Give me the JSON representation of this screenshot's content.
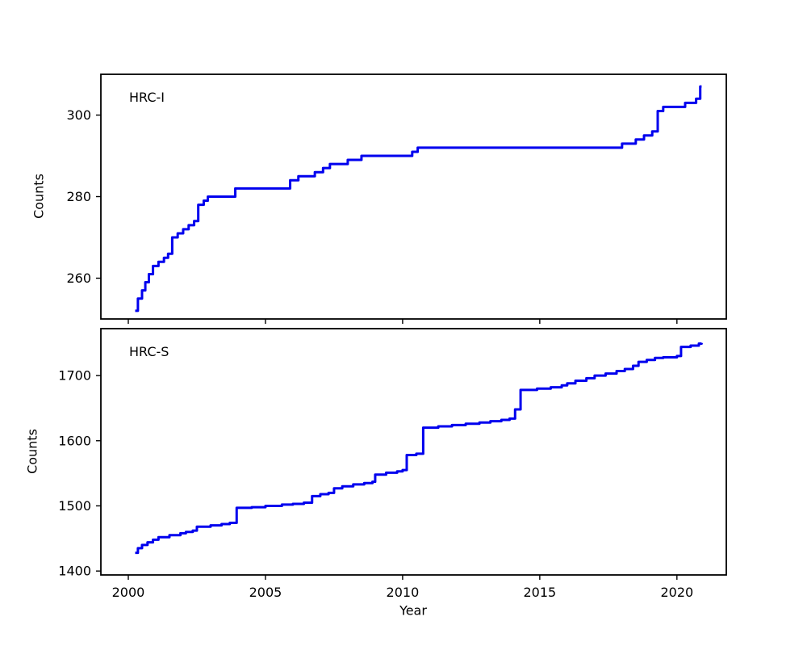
{
  "figure": {
    "background": "#ffffff",
    "xlabel": "Year",
    "line_color": "#0000ee"
  },
  "chart_data": [
    {
      "type": "line",
      "label": "HRC-I",
      "ylabel": "Counts",
      "xlabel": "Year",
      "step": "post",
      "grid": false,
      "legend": "none",
      "xlim": [
        1999.0,
        2021.8
      ],
      "ylim": [
        250,
        310
      ],
      "xticks": [
        2000,
        2005,
        2010,
        2015,
        2020
      ],
      "yticks": [
        260,
        280,
        300
      ],
      "show_xtick_labels": false,
      "series": [
        {
          "name": "HRC-I",
          "color": "#0000ee",
          "x": [
            2000.25,
            2000.35,
            2000.5,
            2000.62,
            2000.75,
            2000.9,
            2001.1,
            2001.3,
            2001.45,
            2001.6,
            2001.8,
            2002.0,
            2002.2,
            2002.4,
            2002.55,
            2002.75,
            2002.9,
            2003.9,
            2005.9,
            2006.2,
            2006.8,
            2007.1,
            2007.35,
            2008.0,
            2008.5,
            2010.35,
            2010.55,
            2018.0,
            2018.5,
            2018.8,
            2019.1,
            2019.3,
            2019.5,
            2020.3,
            2020.7,
            2020.85,
            2020.9
          ],
          "y": [
            252,
            255,
            257,
            259,
            261,
            263,
            264,
            265,
            266,
            270,
            271,
            272,
            273,
            274,
            278,
            279,
            280,
            282,
            284,
            285,
            286,
            287,
            288,
            289,
            290,
            291,
            292,
            293,
            294,
            295,
            296,
            301,
            302,
            303,
            304,
            307,
            307
          ]
        }
      ]
    },
    {
      "type": "line",
      "label": "HRC-S",
      "ylabel": "Counts",
      "xlabel": "Year",
      "step": "post",
      "grid": false,
      "legend": "none",
      "xlim": [
        1999.0,
        2021.8
      ],
      "ylim": [
        1394,
        1772
      ],
      "xticks": [
        2000,
        2005,
        2010,
        2015,
        2020
      ],
      "yticks": [
        1400,
        1500,
        1600,
        1700
      ],
      "show_xtick_labels": true,
      "series": [
        {
          "name": "HRC-S",
          "color": "#0000ee",
          "x": [
            2000.25,
            2000.35,
            2000.5,
            2000.7,
            2000.9,
            2001.1,
            2001.5,
            2001.9,
            2002.1,
            2002.35,
            2002.5,
            2003.0,
            2003.4,
            2003.7,
            2003.95,
            2004.5,
            2005.0,
            2005.6,
            2006.0,
            2006.4,
            2006.7,
            2007.0,
            2007.3,
            2007.5,
            2007.8,
            2008.2,
            2008.6,
            2008.9,
            2009.0,
            2009.4,
            2009.8,
            2010.0,
            2010.15,
            2010.5,
            2010.75,
            2011.3,
            2011.8,
            2012.3,
            2012.8,
            2013.2,
            2013.6,
            2013.9,
            2014.1,
            2014.3,
            2014.9,
            2015.4,
            2015.8,
            2016.0,
            2016.3,
            2016.7,
            2017.0,
            2017.4,
            2017.8,
            2018.1,
            2018.4,
            2018.6,
            2018.9,
            2019.2,
            2019.5,
            2020.0,
            2020.15,
            2020.5,
            2020.8,
            2020.9
          ],
          "y": [
            1428,
            1435,
            1440,
            1444,
            1448,
            1452,
            1455,
            1458,
            1460,
            1462,
            1468,
            1470,
            1472,
            1474,
            1497,
            1498,
            1500,
            1502,
            1503,
            1505,
            1515,
            1518,
            1520,
            1527,
            1530,
            1533,
            1535,
            1537,
            1548,
            1551,
            1553,
            1555,
            1578,
            1580,
            1620,
            1622,
            1624,
            1626,
            1628,
            1630,
            1632,
            1634,
            1648,
            1678,
            1680,
            1682,
            1685,
            1688,
            1692,
            1696,
            1700,
            1703,
            1707,
            1710,
            1715,
            1721,
            1724,
            1727,
            1728,
            1730,
            1744,
            1746,
            1749,
            1750
          ]
        }
      ]
    }
  ]
}
